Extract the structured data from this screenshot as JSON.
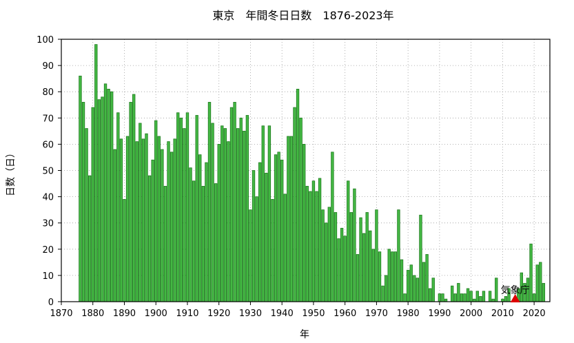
{
  "chart_data": {
    "type": "bar",
    "title": "東京　年間冬日日数　1876-2023年",
    "xlabel": "年",
    "ylabel": "日数（日）",
    "xlim": [
      1870,
      2025
    ],
    "ylim": [
      0,
      100
    ],
    "x_ticks": [
      1870,
      1880,
      1890,
      1900,
      1910,
      1920,
      1930,
      1940,
      1950,
      1960,
      1970,
      1980,
      1990,
      2000,
      2010,
      2020
    ],
    "y_ticks": [
      0,
      10,
      20,
      30,
      40,
      50,
      60,
      70,
      80,
      90,
      100
    ],
    "grid": true,
    "bar_color": "#44b844",
    "bar_edge_color": "#1e7a1e",
    "x": [
      1876,
      1877,
      1878,
      1879,
      1880,
      1881,
      1882,
      1883,
      1884,
      1885,
      1886,
      1887,
      1888,
      1889,
      1890,
      1891,
      1892,
      1893,
      1894,
      1895,
      1896,
      1897,
      1898,
      1899,
      1900,
      1901,
      1902,
      1903,
      1904,
      1905,
      1906,
      1907,
      1908,
      1909,
      1910,
      1911,
      1912,
      1913,
      1914,
      1915,
      1916,
      1917,
      1918,
      1919,
      1920,
      1921,
      1922,
      1923,
      1924,
      1925,
      1926,
      1927,
      1928,
      1929,
      1930,
      1931,
      1932,
      1933,
      1934,
      1935,
      1936,
      1937,
      1938,
      1939,
      1940,
      1941,
      1942,
      1943,
      1944,
      1945,
      1946,
      1947,
      1948,
      1949,
      1950,
      1951,
      1952,
      1953,
      1954,
      1955,
      1956,
      1957,
      1958,
      1959,
      1960,
      1961,
      1962,
      1963,
      1964,
      1965,
      1966,
      1967,
      1968,
      1969,
      1970,
      1971,
      1972,
      1973,
      1974,
      1975,
      1976,
      1977,
      1978,
      1979,
      1980,
      1981,
      1982,
      1983,
      1984,
      1985,
      1986,
      1987,
      1988,
      1989,
      1990,
      1991,
      1992,
      1993,
      1994,
      1995,
      1996,
      1997,
      1998,
      1999,
      2000,
      2001,
      2002,
      2003,
      2004,
      2005,
      2006,
      2007,
      2008,
      2009,
      2010,
      2011,
      2012,
      2013,
      2014,
      2015,
      2016,
      2017,
      2018,
      2019,
      2020,
      2021,
      2022,
      2023
    ],
    "values": [
      86,
      76,
      66,
      48,
      74,
      98,
      77,
      78,
      83,
      81,
      80,
      58,
      72,
      62,
      39,
      63,
      76,
      79,
      61,
      68,
      62,
      64,
      48,
      54,
      69,
      63,
      58,
      44,
      61,
      57,
      62,
      72,
      70,
      66,
      72,
      51,
      46,
      71,
      56,
      44,
      53,
      76,
      68,
      45,
      60,
      67,
      66,
      61,
      74,
      76,
      66,
      70,
      65,
      71,
      35,
      50,
      40,
      53,
      67,
      49,
      67,
      39,
      56,
      57,
      54,
      41,
      63,
      63,
      74,
      81,
      70,
      60,
      44,
      42,
      46,
      42,
      47,
      35,
      30,
      36,
      57,
      34,
      24,
      28,
      25,
      46,
      34,
      43,
      18,
      32,
      26,
      34,
      27,
      20,
      35,
      19,
      6,
      10,
      20,
      19,
      19,
      35,
      16,
      3,
      12,
      14,
      10,
      9,
      33,
      15,
      18,
      5,
      9,
      0,
      3,
      3,
      1,
      0,
      6,
      3,
      7,
      3,
      3,
      5,
      4,
      1,
      4,
      2,
      4,
      0,
      4,
      1,
      9,
      0,
      1,
      2,
      5,
      0,
      0,
      5,
      11,
      7,
      9,
      22,
      3,
      14,
      15,
      7
    ],
    "annotations": [
      {
        "label": "気象庁",
        "x": 2014,
        "y": 0,
        "marker": "triangle",
        "marker_color": "#dd0000"
      }
    ]
  }
}
